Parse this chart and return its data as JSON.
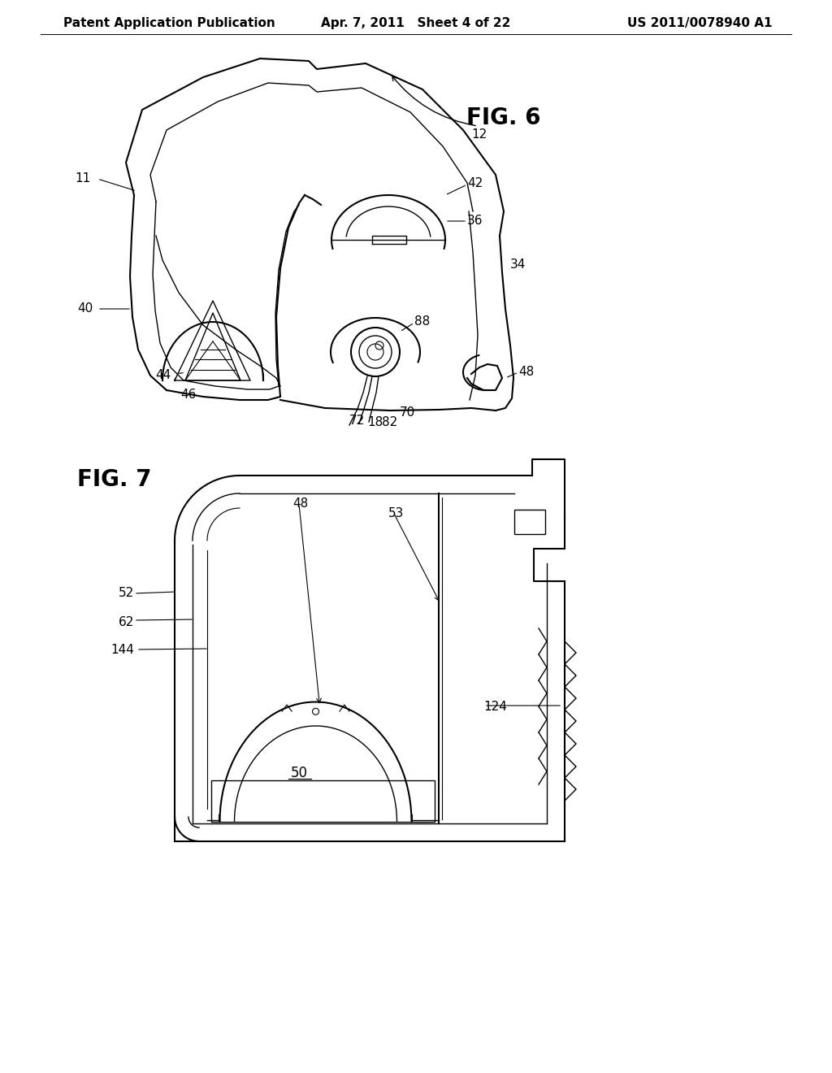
{
  "background_color": "#ffffff",
  "header": {
    "left_text": "Patent Application Publication",
    "center_text": "Apr. 7, 2011   Sheet 4 of 22",
    "right_text": "US 2011/0078940 A1",
    "fontsize": 11
  },
  "lc": "#000000",
  "lw": 1.5,
  "tlw": 1.0,
  "fs": 11
}
